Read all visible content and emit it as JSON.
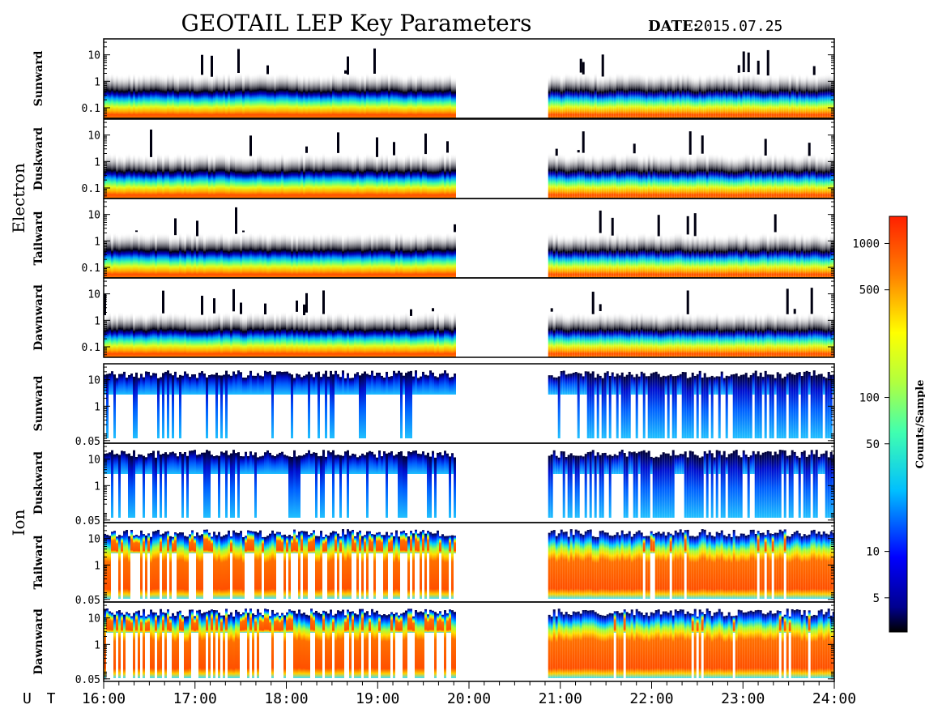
{
  "header": {
    "title": "GEOTAIL LEP Key Parameters",
    "date_label": "DATE:",
    "date_value": "2015.07.25"
  },
  "groups": [
    {
      "name": "Electron"
    },
    {
      "name": "Ion"
    }
  ],
  "xaxis": {
    "label": "U T",
    "ticks": [
      "16:00",
      "17:00",
      "18:00",
      "19:00",
      "20:00",
      "21:00",
      "22:00",
      "23:00",
      "24:00"
    ]
  },
  "colorbar": {
    "label": "Counts/Sample",
    "scale": "log",
    "range": [
      3,
      1500
    ],
    "ticks": [
      "1000",
      "500",
      "100",
      "50",
      "10",
      "5"
    ],
    "colormap": "jet"
  },
  "chart_data": {
    "type": "heatmap",
    "x_range": [
      "16:00",
      "24:00"
    ],
    "data_gap": [
      "19:50",
      "20:52"
    ],
    "panels": [
      {
        "group": "Electron",
        "direction": "Sunward",
        "yscale": "log",
        "yticks": [
          "10",
          "1",
          "0.1"
        ],
        "ylim": [
          0.04,
          40
        ]
      },
      {
        "group": "Electron",
        "direction": "Duskward",
        "yscale": "log",
        "yticks": [
          "10",
          "1",
          "0.1"
        ],
        "ylim": [
          0.04,
          40
        ]
      },
      {
        "group": "Electron",
        "direction": "Tailward",
        "yscale": "log",
        "yticks": [
          "10",
          "1",
          "0.1"
        ],
        "ylim": [
          0.04,
          40
        ]
      },
      {
        "group": "Electron",
        "direction": "Dawnward",
        "yscale": "log",
        "yticks": [
          "10",
          "1",
          "0.1"
        ],
        "ylim": [
          0.04,
          40
        ]
      },
      {
        "group": "Ion",
        "direction": "Sunward",
        "yscale": "log",
        "yticks": [
          "10",
          "1",
          "0.05"
        ],
        "ylim": [
          0.04,
          40
        ]
      },
      {
        "group": "Ion",
        "direction": "Duskward",
        "yscale": "log",
        "yticks": [
          "10",
          "1",
          "0.05"
        ],
        "ylim": [
          0.04,
          40
        ]
      },
      {
        "group": "Ion",
        "direction": "Tailward",
        "yscale": "log",
        "yticks": [
          "10",
          "1",
          "0.05"
        ],
        "ylim": [
          0.04,
          40
        ]
      },
      {
        "group": "Ion",
        "direction": "Dawnward",
        "yscale": "log",
        "yticks": [
          "10",
          "1",
          "0.05"
        ],
        "ylim": [
          0.04,
          40
        ]
      }
    ]
  }
}
